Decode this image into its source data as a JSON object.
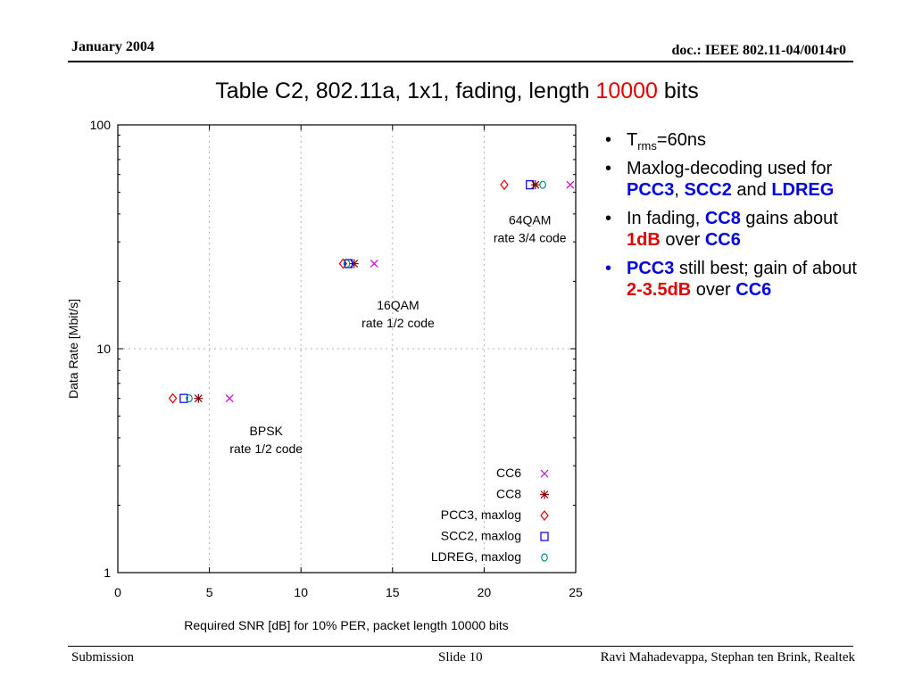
{
  "header": {
    "date": "January 2004",
    "doc": "doc.: IEEE 802.11-04/0014r0"
  },
  "slide_title": {
    "pre": "Table C2, 802.11a, 1x1, fading, length ",
    "highlight": "10000",
    "post": " bits"
  },
  "bullets": {
    "b1": {
      "t": "T",
      "sub": "rms",
      "rest": "=60ns"
    },
    "b2": {
      "a": "Maxlog-decoding used for ",
      "pcc3": "PCC3",
      "comma": ", ",
      "scc2": "SCC2",
      "and": " and ",
      "ldreg": "LDREG"
    },
    "b3": {
      "a": "In fading, ",
      "cc8": "CC8",
      "b": " gains about ",
      "val": "1dB",
      "c": " over ",
      "cc6": "CC6"
    },
    "b4": {
      "pcc3": "PCC3",
      "a": " still best; gain of about ",
      "val": "2-3.5dB",
      "b": " over ",
      "cc6": "CC6"
    }
  },
  "footer": {
    "left": "Submission",
    "center": "Slide 10",
    "right": "Ravi Mahadevappa, Stephan ten Brink, Realtek"
  },
  "chart_data": {
    "type": "scatter",
    "xlabel": "Required SNR [dB] for 10% PER, packet length 10000 bits",
    "ylabel": "Data Rate [Mbit/s]",
    "xlim": [
      0,
      25
    ],
    "ylim": [
      1,
      100
    ],
    "yscale": "log",
    "grid": true,
    "legend_position": "bottom-right",
    "x_ticks": [
      0,
      5,
      10,
      15,
      20,
      25
    ],
    "y_ticks": [
      1,
      10,
      100
    ],
    "series": [
      {
        "name": "CC6",
        "marker": "x",
        "color": "#d400d4",
        "points": [
          [
            6.1,
            6
          ],
          [
            14.0,
            24
          ],
          [
            24.7,
            54
          ]
        ]
      },
      {
        "name": "CC8",
        "marker": "asterisk",
        "color": "#8b0000",
        "points": [
          [
            4.4,
            6
          ],
          [
            12.9,
            24
          ],
          [
            22.8,
            54
          ]
        ]
      },
      {
        "name": "PCC3, maxlog",
        "marker": "diamond",
        "color": "#e00000",
        "points": [
          [
            3.0,
            6
          ],
          [
            12.3,
            24
          ],
          [
            21.1,
            54
          ]
        ]
      },
      {
        "name": "SCC2, maxlog",
        "marker": "square",
        "color": "#0000e0",
        "points": [
          [
            3.6,
            6
          ],
          [
            12.6,
            24
          ],
          [
            22.5,
            54
          ]
        ]
      },
      {
        "name": "LDREG, maxlog",
        "marker": "circle",
        "color": "#008b8b",
        "points": [
          [
            3.9,
            6
          ],
          [
            12.5,
            24
          ],
          [
            23.2,
            54
          ]
        ]
      }
    ],
    "annotations": [
      {
        "lines": [
          "64QAM",
          "rate 3/4 code"
        ],
        "x": 22.5,
        "y": 36
      },
      {
        "lines": [
          "16QAM",
          "rate 1/2 code"
        ],
        "x": 15.3,
        "y": 15
      },
      {
        "lines": [
          "BPSK",
          "rate 1/2 code"
        ],
        "x": 8.1,
        "y": 4.1
      }
    ]
  }
}
